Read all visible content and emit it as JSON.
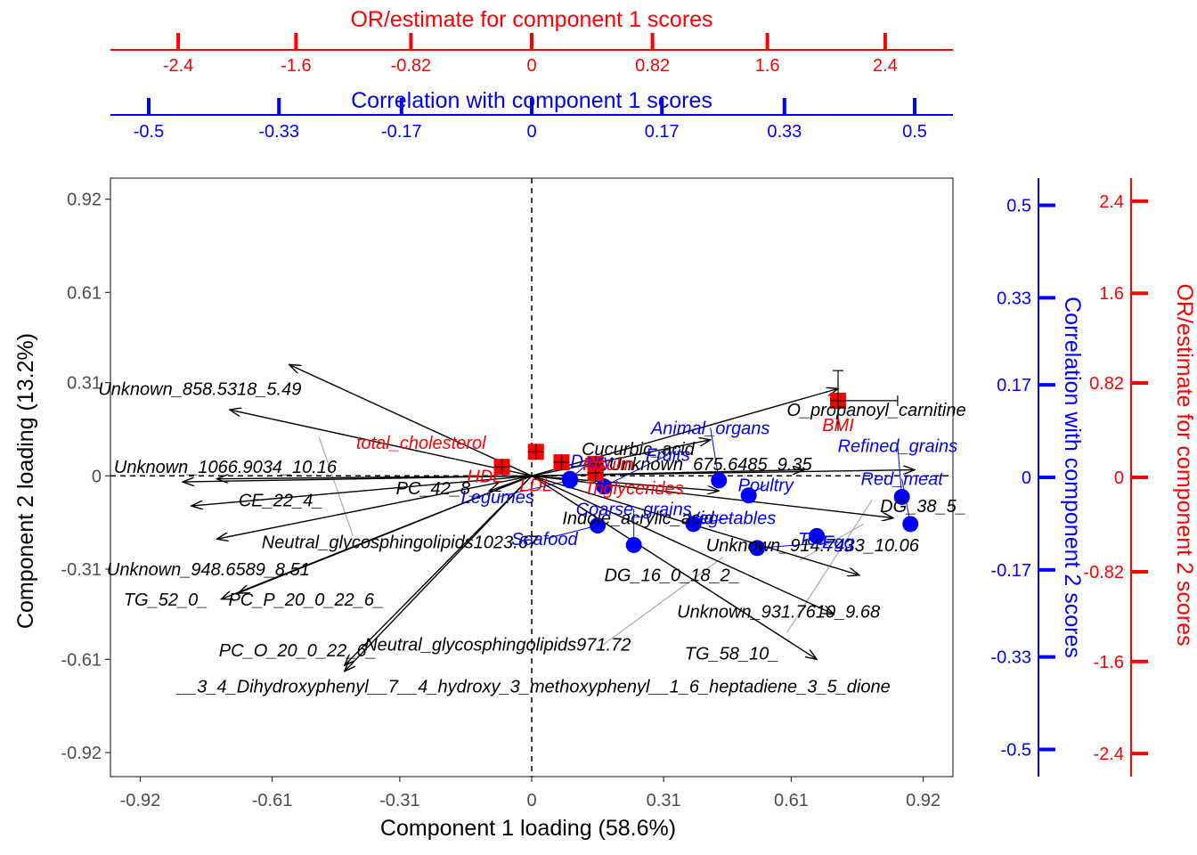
{
  "colors": {
    "loading": "#000000",
    "correlation": "#0000ff",
    "or": "#ff0000",
    "guide": "#aaaaaa"
  },
  "chart_data": {
    "type": "scatter",
    "xlabel": "Component 1 loading (58.6%)",
    "ylabel": "Component 2 loading (13.2%)",
    "xlim": [
      -0.99,
      0.99
    ],
    "ylim": [
      -1.0,
      0.99
    ],
    "xticks": [
      -0.92,
      -0.61,
      -0.31,
      0,
      0.31,
      0.61,
      0.92
    ],
    "xtick_labels": [
      "-0.92",
      "-0.61",
      "-0.31",
      "0",
      "0.31",
      "0.61",
      "0.92"
    ],
    "yticks": [
      -0.92,
      -0.61,
      -0.31,
      0,
      0.31,
      0.61,
      0.92
    ],
    "ytick_labels": [
      "-0.92",
      "-0.61",
      "-0.31",
      "0",
      "0.31",
      "0.61",
      "0.92"
    ],
    "reference_lines": {
      "x": 0,
      "y": 0
    },
    "grid": false,
    "top_axis_or": {
      "title": "OR/estimate for component 1 scores",
      "values": [
        -2.4,
        -1.6,
        -0.82,
        0,
        0.82,
        1.6,
        2.4
      ],
      "labels": [
        "-2.4",
        "-1.6",
        "-0.82",
        "0",
        "0.82",
        "1.6",
        "2.4"
      ],
      "range": [
        -2.86,
        2.86
      ]
    },
    "top_axis_corr": {
      "title": "Correlation with component 1 scores",
      "values": [
        -0.5,
        -0.33,
        -0.17,
        0,
        0.17,
        0.33,
        0.5
      ],
      "labels": [
        "-0.5",
        "-0.33",
        "-0.17",
        "0",
        "0.17",
        "0.33",
        "0.5"
      ],
      "range": [
        -0.55,
        0.55
      ]
    },
    "right_axis_corr": {
      "title": "Correlation with component 2 scores",
      "values": [
        0.5,
        0.33,
        0.17,
        0,
        -0.17,
        -0.33,
        -0.5
      ],
      "labels": [
        "0.5",
        "0.33",
        "0.17",
        "0",
        "-0.17",
        "-0.33",
        "-0.5"
      ],
      "range": [
        -0.55,
        0.55
      ]
    },
    "right_axis_or": {
      "title": "OR/estimate for component 2 scores",
      "values": [
        2.4,
        1.6,
        0.82,
        0,
        -0.82,
        -1.6,
        -2.4
      ],
      "labels": [
        "2.4",
        "1.6",
        "0.82",
        "0",
        "-0.82",
        "-1.6",
        "-2.4"
      ],
      "range": [
        -2.6,
        2.6
      ]
    },
    "loadings": [
      {
        "name": "Unknown_858.5318_5.49",
        "x": -0.57,
        "y": 0.37,
        "lx": -0.78,
        "ly": 0.29
      },
      {
        "name": "Unknown_1066.9034_10.16",
        "x": -0.82,
        "y": -0.02,
        "lx": -0.72,
        "ly": 0.03
      },
      {
        "name": "CE_22_4_",
        "x": -0.74,
        "y": -0.01,
        "lx": -0.59,
        "ly": -0.08
      },
      {
        "name": "PC_42_8_",
        "x": -0.8,
        "y": -0.1,
        "lx": -0.22,
        "ly": -0.04
      },
      {
        "name": "Neutral_glycosphingolipids1023.67",
        "x": -0.74,
        "y": -0.21,
        "lx": -0.31,
        "ly": -0.22
      },
      {
        "name": "Unknown_948.6589_8.51",
        "x": -0.71,
        "y": 0.22,
        "lx": -0.76,
        "ly": -0.31
      },
      {
        "name": "TG_52_0_",
        "x": -0.73,
        "y": -0.41,
        "lx": -0.86,
        "ly": -0.41
      },
      {
        "name": "PC_P_20_0_22_6_",
        "x": -0.69,
        "y": -0.39,
        "lx": -0.53,
        "ly": -0.41
      },
      {
        "name": "PC_O_20_0_22_6_",
        "x": -0.44,
        "y": -0.63,
        "lx": -0.55,
        "ly": -0.58
      },
      {
        "name": "Neutral_glycosphingolipids971.72",
        "x": -0.44,
        "y": -0.65,
        "lx": -0.08,
        "ly": -0.56
      },
      {
        "name": "__3_4_Dihydroxyphenyl__7__4_hydroxy_3_methoxyphenyl__1_6_heptadiene_3_5_dione",
        "x": -0.1,
        "y": -0.05,
        "lx": 0.005,
        "ly": -0.7
      },
      {
        "name": "Cucurbic_acid",
        "x": 0.42,
        "y": 0.12,
        "lx": 0.25,
        "ly": 0.09
      },
      {
        "name": "O_propanoyl_carnitine",
        "x": 0.72,
        "y": 0.29,
        "lx": 0.81,
        "ly": 0.22
      },
      {
        "name": "Unknown_675.6485_9.35",
        "x": 0.64,
        "y": 0.02,
        "lx": 0.42,
        "ly": 0.04
      },
      {
        "name": "Indole_acrylic_acid",
        "x": 0.44,
        "y": -0.05,
        "lx": 0.25,
        "ly": -0.14
      },
      {
        "name": "DG_38_5_",
        "x": 0.9,
        "y": 0.02,
        "lx": 0.92,
        "ly": -0.1
      },
      {
        "name": "Unknown_914.7433_10.06",
        "x": 0.85,
        "y": -0.14,
        "lx": 0.66,
        "ly": -0.23
      },
      {
        "name": "DG_16_0_18_2_",
        "x": 0.77,
        "y": -0.33,
        "lx": 0.33,
        "ly": -0.33
      },
      {
        "name": "Unknown_931.7610_9.68",
        "x": 0.71,
        "y": -0.46,
        "lx": 0.58,
        "ly": -0.45
      },
      {
        "name": "TG_58_10_",
        "x": 0.67,
        "y": -0.61,
        "lx": 0.47,
        "ly": -0.59
      }
    ],
    "correlation_points": [
      {
        "name": "Animal_organs",
        "x": 0.44,
        "y": -0.015,
        "lx": 0.42,
        "ly": 0.16
      },
      {
        "name": "Refined_grains",
        "x": 0.87,
        "y": -0.07,
        "lx": 0.86,
        "ly": 0.1
      },
      {
        "name": "Red_meat",
        "x": 0.89,
        "y": -0.16,
        "lx": 0.87,
        "ly": -0.01
      },
      {
        "name": "Poultry",
        "x": 0.51,
        "y": -0.065,
        "lx": 0.55,
        "ly": -0.03
      },
      {
        "name": "Fruits",
        "x": 0.17,
        "y": -0.035,
        "lx": 0.32,
        "ly": 0.07
      },
      {
        "name": "Dairy",
        "x": 0.09,
        "y": -0.01,
        "lx": 0.14,
        "ly": 0.05
      },
      {
        "name": "Legumes",
        "x": 0.09,
        "y": -0.015,
        "lx": -0.08,
        "ly": -0.07
      },
      {
        "name": "Coarse_grains",
        "x": 0.24,
        "y": -0.23,
        "lx": 0.24,
        "ly": -0.11
      },
      {
        "name": "Vegetables",
        "x": 0.38,
        "y": -0.16,
        "lx": 0.47,
        "ly": -0.14
      },
      {
        "name": "Seafood",
        "x": 0.155,
        "y": -0.165,
        "lx": 0.03,
        "ly": -0.21
      },
      {
        "name": "Egg",
        "x": 0.53,
        "y": -0.24,
        "lx": 0.72,
        "ly": -0.22
      },
      {
        "name": "Tea",
        "x": 0.67,
        "y": -0.2,
        "lx": 0.66,
        "ly": -0.21
      }
    ],
    "or_points": [
      {
        "name": "BMI",
        "x": 0.72,
        "y": 0.25,
        "lx": 0.72,
        "ly": 0.17,
        "xerr": [
          0.72,
          0.86
        ],
        "yerr": [
          0.15,
          0.35
        ]
      },
      {
        "name": "total_cholesterol",
        "x": 0.01,
        "y": 0.08,
        "lx": -0.26,
        "ly": 0.11
      },
      {
        "name": "HDL",
        "x": -0.07,
        "y": 0.03,
        "lx": -0.11,
        "ly": 0.0
      },
      {
        "name": "LDL",
        "x": 0.07,
        "y": 0.045,
        "lx": 0.01,
        "ly": -0.03
      },
      {
        "name": "Insulin",
        "x": 0.15,
        "y": 0.04,
        "lx": 0.18,
        "ly": 0.04
      },
      {
        "name": "Triglycerides",
        "x": 0.15,
        "y": 0.01,
        "lx": 0.24,
        "ly": -0.04
      }
    ]
  }
}
